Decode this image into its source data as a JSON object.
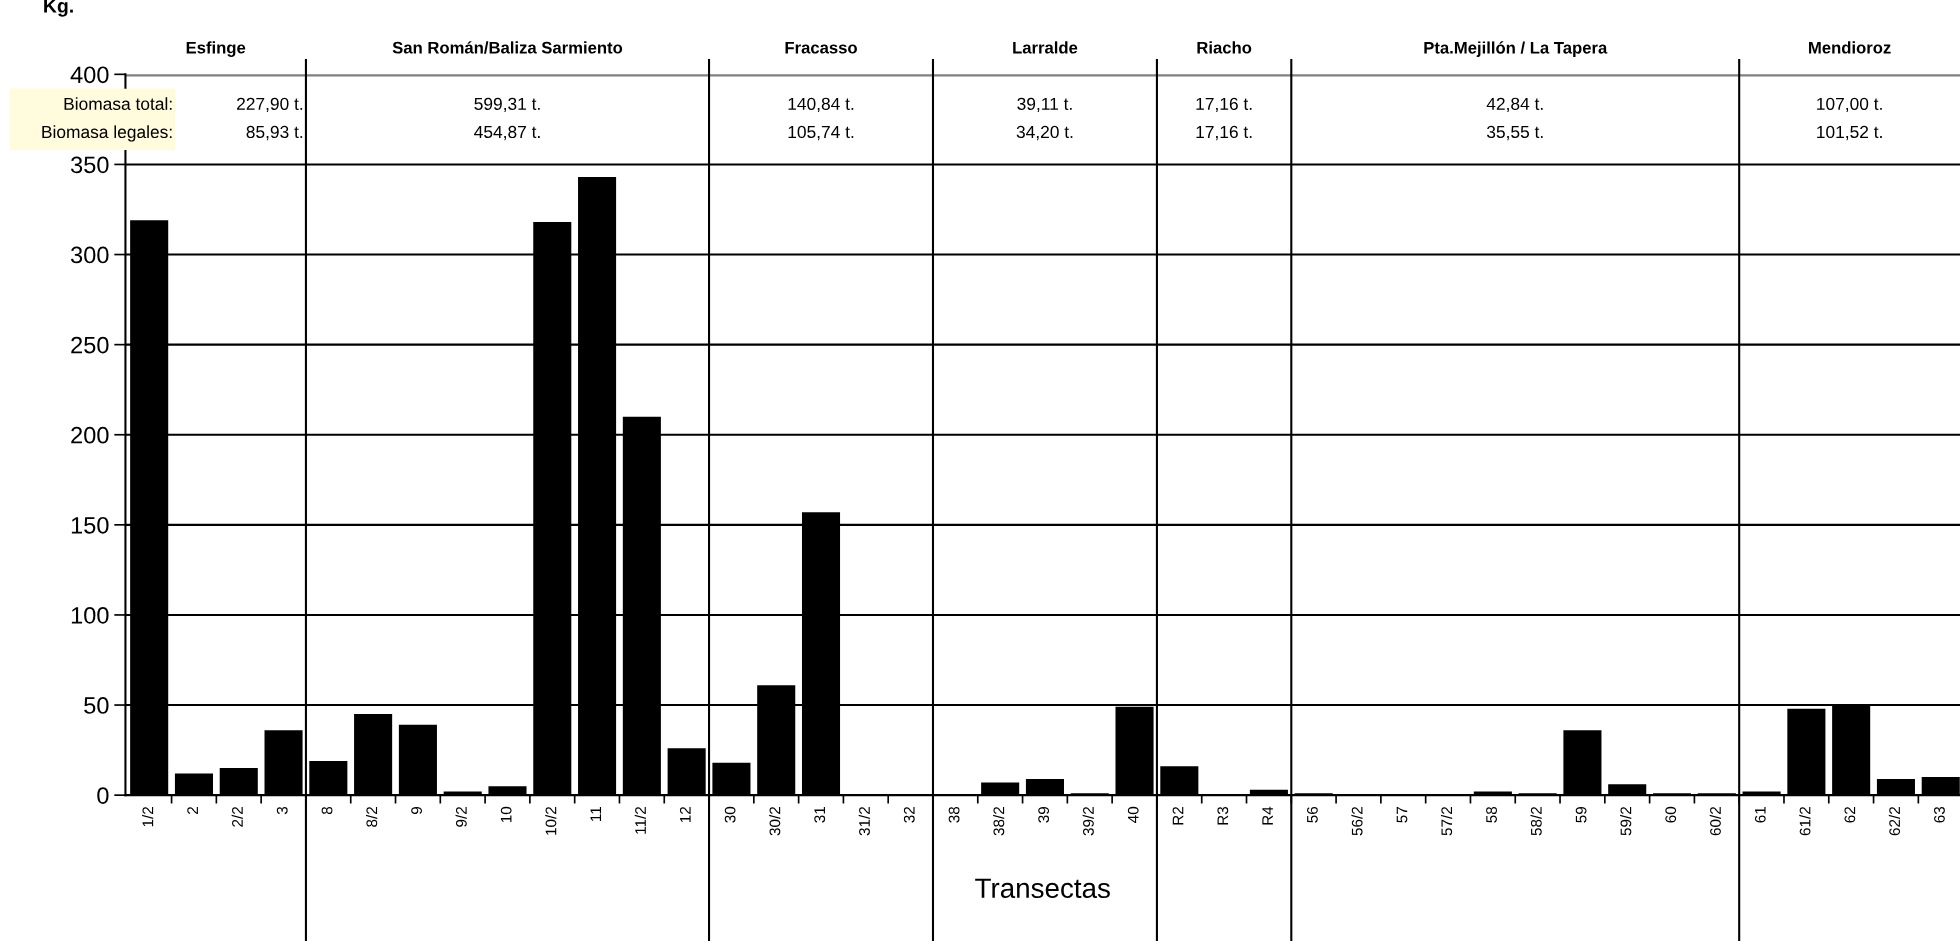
{
  "chart_data": {
    "type": "bar",
    "ylabel": "Kg.",
    "xlabel": "Transectas",
    "categories": [
      "1/2",
      "2",
      "2/2",
      "3",
      "8",
      "8/2",
      "9",
      "9/2",
      "10",
      "10/2",
      "11",
      "11/2",
      "12",
      "30",
      "30/2",
      "31",
      "31/2",
      "32",
      "38",
      "38/2",
      "39",
      "39/2",
      "40",
      "R2",
      "R3",
      "R4",
      "56",
      "56/2",
      "57",
      "57/2",
      "58",
      "58/2",
      "59",
      "59/2",
      "60",
      "60/2",
      "61",
      "61/2",
      "62",
      "62/2",
      "63"
    ],
    "values": [
      319,
      12,
      15,
      36,
      19,
      45,
      39,
      2,
      5,
      318,
      343,
      210,
      26,
      18,
      61,
      157,
      0,
      0,
      0,
      7,
      9,
      1,
      49,
      16,
      0,
      3,
      1,
      0,
      0,
      0,
      2,
      1,
      36,
      6,
      1,
      1,
      2,
      48,
      50,
      9,
      10
    ],
    "color": "#000000",
    "ylim": [
      0,
      400
    ],
    "yticks": [
      0,
      50,
      100,
      150,
      200,
      250,
      300,
      350,
      400
    ],
    "grid": "y",
    "annotations": [
      "Esfinge",
      "San Román/Baliza Sarmiento",
      "Fracasso",
      "Larralde",
      "Riacho",
      "Pta.Mejillón / La Tapera",
      "Mendioroz",
      "227,90 t.",
      "599,31 t.",
      "140,84 t.",
      "39,11 t.",
      "17,16 t.",
      "42,84 t.",
      "107,00 t.",
      "85,93 t.",
      "454,87 t.",
      "105,74 t.",
      "34,20 t.",
      "17,16 t.",
      "35,55 t.",
      "101,52 t.",
      "Biomasa total:",
      "Biomasa legales:"
    ]
  }
}
